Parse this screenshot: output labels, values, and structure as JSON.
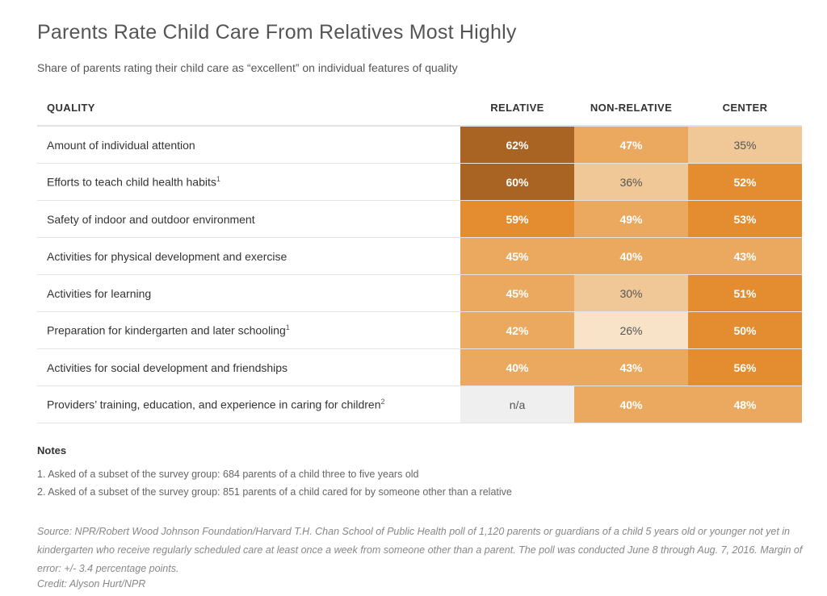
{
  "title": "Parents Rate Child Care From Relatives Most Highly",
  "subtitle": "Share of parents rating their child care as “excellent” on individual features of quality",
  "chart_data": {
    "type": "heatmap",
    "title": "Parents Rate Child Care From Relatives Most Highly",
    "subtitle": "Share of parents rating their child care as “excellent” on individual features of quality",
    "row_header": "QUALITY",
    "columns": [
      "RELATIVE",
      "NON-RELATIVE",
      "CENTER"
    ],
    "rows": [
      {
        "label": "Amount of individual attention",
        "footnote": "",
        "values": [
          "62%",
          "47%",
          "35%"
        ],
        "numbers": [
          62,
          47,
          35
        ]
      },
      {
        "label": "Efforts to teach child health habits",
        "footnote": "1",
        "values": [
          "60%",
          "36%",
          "52%"
        ],
        "numbers": [
          60,
          36,
          52
        ]
      },
      {
        "label": "Safety of indoor and outdoor environment",
        "footnote": "",
        "values": [
          "59%",
          "49%",
          "53%"
        ],
        "numbers": [
          59,
          49,
          53
        ]
      },
      {
        "label": "Activities for physical development and exercise",
        "footnote": "",
        "values": [
          "45%",
          "40%",
          "43%"
        ],
        "numbers": [
          45,
          40,
          43
        ]
      },
      {
        "label": "Activities for learning",
        "footnote": "",
        "values": [
          "45%",
          "30%",
          "51%"
        ],
        "numbers": [
          45,
          30,
          51
        ]
      },
      {
        "label": "Preparation for kindergarten and later schooling",
        "footnote": "1",
        "values": [
          "42%",
          "26%",
          "50%"
        ],
        "numbers": [
          42,
          26,
          50
        ]
      },
      {
        "label": "Activities for social development and friendships",
        "footnote": "",
        "values": [
          "40%",
          "43%",
          "56%"
        ],
        "numbers": [
          40,
          43,
          56
        ]
      },
      {
        "label": "Providers’ training, education, and experience in caring for children",
        "footnote": "2",
        "values": [
          "n/a",
          "40%",
          "48%"
        ],
        "numbers": [
          null,
          40,
          48
        ]
      }
    ]
  },
  "colors": {
    "darkest": "#a96424",
    "dark": "#e48d30",
    "medium": "#eaa95f",
    "light": "#f0c898",
    "lightest": "#f8e2c8",
    "na": "#efefef"
  },
  "notes": {
    "heading": "Notes",
    "items": [
      "1. Asked of a subset of the survey group: 684 parents of a child three to five years old",
      "2. Asked of a subset of the survey group: 851 parents of a child cared for by someone other than a relative"
    ]
  },
  "source": "Source: NPR/Robert Wood Johnson Foundation/Harvard T.H. Chan School of Public Health poll of 1,120 parents or guardians of a child 5 years old or younger not yet in kindergarten who receive regularly scheduled care at least once a week from someone other than a parent. The poll was conducted June 8 through Aug. 7, 2016. Margin of error: +/- 3.4 percentage points.",
  "credit": "Credit: Alyson Hurt/NPR"
}
